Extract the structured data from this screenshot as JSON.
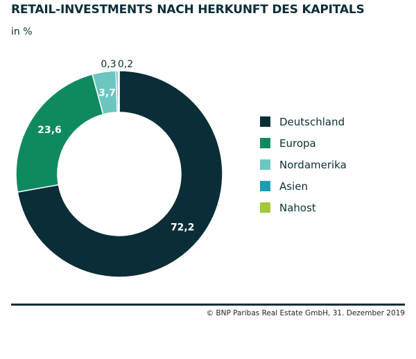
{
  "chart_data": {
    "type": "pie",
    "variant": "donut",
    "title": "RETAIL-INVESTMENTS NACH HERKUNFT DES KAPITALS",
    "subtitle": "in %",
    "legend_position": "right",
    "slices": [
      {
        "label": "Deutschland",
        "value": 72.2,
        "display": "72,2",
        "color": "#0b2d37"
      },
      {
        "label": "Europa",
        "value": 23.6,
        "display": "23,6",
        "color": "#0f8a5f"
      },
      {
        "label": "Nordamerika",
        "value": 3.7,
        "display": "3,7",
        "color": "#6cc5c0"
      },
      {
        "label": "Asien",
        "value": 0.3,
        "display": "0,3",
        "color": "#1e9bb5"
      },
      {
        "label": "Nahost",
        "value": 0.2,
        "display": "0,2",
        "color": "#a2c73b"
      }
    ]
  },
  "footer": {
    "source": "© BNP Paribas Real Estate GmbH, 31. Dezember 2019"
  }
}
